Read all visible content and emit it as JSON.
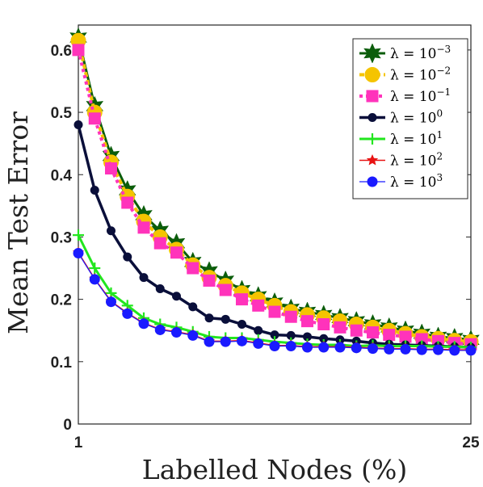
{
  "chart_data": {
    "type": "line",
    "xlabel": "Labelled Nodes (%)",
    "ylabel": "Mean Test Error",
    "x_tick_labels": [
      "1",
      "25"
    ],
    "y_tick_labels": [
      "0",
      "0.1",
      "0.2",
      "0.3",
      "0.4",
      "0.5",
      "0.6"
    ],
    "xlim": [
      1,
      25
    ],
    "ylim": [
      0,
      0.64
    ],
    "grid": false,
    "legend_position": "top-right",
    "x": [
      1,
      2,
      3,
      4,
      5,
      6,
      7,
      8,
      9,
      10,
      11,
      12,
      13,
      14,
      15,
      16,
      17,
      18,
      19,
      20,
      21,
      22,
      23,
      24,
      25
    ],
    "series": [
      {
        "name": "λ = 10^-3",
        "legend_base": "λ = 10",
        "legend_exp": "−3",
        "color": "#0b5d0b",
        "marker": "star6",
        "marker_size": 12,
        "line_width": 3,
        "dash": "none",
        "values": [
          0.62,
          0.51,
          0.43,
          0.375,
          0.335,
          0.31,
          0.29,
          0.26,
          0.245,
          0.23,
          0.215,
          0.205,
          0.195,
          0.185,
          0.18,
          0.175,
          0.17,
          0.165,
          0.16,
          0.155,
          0.15,
          0.145,
          0.14,
          0.138,
          0.135
        ]
      },
      {
        "name": "λ = 10^-2",
        "legend_base": "λ = 10",
        "legend_exp": "−2",
        "color": "#f5c400",
        "marker": "circle",
        "marker_size": 9,
        "line_width": 4,
        "dash": "6,4",
        "values": [
          0.615,
          0.5,
          0.42,
          0.365,
          0.325,
          0.3,
          0.28,
          0.255,
          0.235,
          0.222,
          0.21,
          0.2,
          0.19,
          0.18,
          0.175,
          0.17,
          0.165,
          0.16,
          0.155,
          0.15,
          0.145,
          0.14,
          0.137,
          0.134,
          0.132
        ]
      },
      {
        "name": "λ = 10^-1",
        "legend_base": "λ = 10",
        "legend_exp": "−1",
        "color": "#ff33bb",
        "marker": "square",
        "marker_size": 7,
        "line_width": 4,
        "dash": "4,4",
        "values": [
          0.6,
          0.49,
          0.41,
          0.355,
          0.315,
          0.29,
          0.275,
          0.25,
          0.23,
          0.215,
          0.2,
          0.19,
          0.18,
          0.172,
          0.165,
          0.16,
          0.155,
          0.15,
          0.147,
          0.143,
          0.14,
          0.136,
          0.133,
          0.13,
          0.128
        ]
      },
      {
        "name": "λ = 10^0",
        "legend_base": "λ = 10",
        "legend_exp": "0",
        "color": "#0a0f3a",
        "marker": "circle",
        "marker_size": 5,
        "line_width": 3.5,
        "dash": "none",
        "values": [
          0.48,
          0.375,
          0.31,
          0.268,
          0.235,
          0.217,
          0.205,
          0.188,
          0.17,
          0.168,
          0.16,
          0.15,
          0.143,
          0.142,
          0.14,
          0.137,
          0.135,
          0.133,
          0.13,
          0.128,
          0.127,
          0.126,
          0.125,
          0.124,
          0.123
        ]
      },
      {
        "name": "λ = 10^1",
        "legend_base": "λ = 10",
        "legend_exp": "1",
        "color": "#22e61e",
        "marker": "plus",
        "marker_size": 7,
        "line_width": 3,
        "dash": "none",
        "values": [
          0.303,
          0.25,
          0.21,
          0.19,
          0.17,
          0.16,
          0.155,
          0.148,
          0.14,
          0.138,
          0.138,
          0.135,
          0.132,
          0.13,
          0.128,
          0.127,
          0.127,
          0.125,
          0.126,
          0.125,
          0.125,
          0.125,
          0.124,
          0.124,
          0.123
        ]
      },
      {
        "name": "λ = 10^2",
        "legend_base": "λ = 10",
        "legend_exp": "2",
        "color": "#e81212",
        "marker": "star5",
        "marker_size": 7,
        "line_width": 1.5,
        "dash": "none",
        "values": [
          0.275,
          0.233,
          0.197,
          0.178,
          0.162,
          0.152,
          0.148,
          0.143,
          0.133,
          0.133,
          0.134,
          0.13,
          0.126,
          0.126,
          0.124,
          0.124,
          0.124,
          0.123,
          0.122,
          0.121,
          0.121,
          0.12,
          0.12,
          0.119,
          0.119
        ]
      },
      {
        "name": "λ = 10^3",
        "legend_base": "λ = 10",
        "legend_exp": "3",
        "color": "#1a1aff",
        "marker": "circle",
        "marker_size": 6,
        "line_width": 1.2,
        "dash": "none",
        "values": [
          0.274,
          0.232,
          0.196,
          0.177,
          0.161,
          0.151,
          0.147,
          0.142,
          0.132,
          0.132,
          0.133,
          0.129,
          0.125,
          0.125,
          0.123,
          0.123,
          0.123,
          0.122,
          0.121,
          0.12,
          0.12,
          0.119,
          0.119,
          0.118,
          0.118
        ]
      }
    ]
  }
}
